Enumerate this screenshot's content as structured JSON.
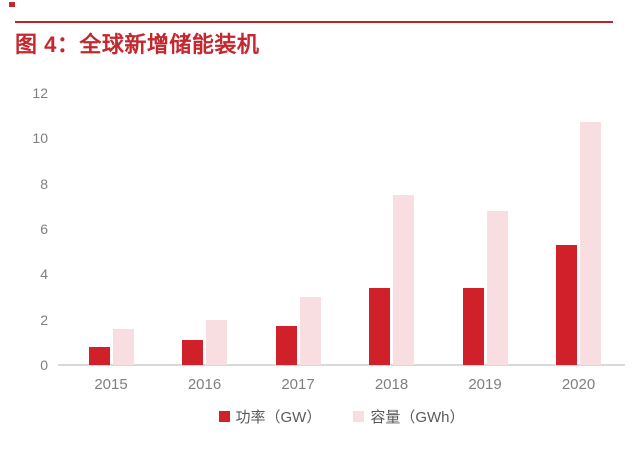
{
  "page": {
    "title": "图 4：全球新增储能装机"
  },
  "colors": {
    "accent_rule": "#bf2329",
    "title_text": "#c2282e",
    "power_bar": "#d0202a",
    "capacity_bar": "#f8dde1",
    "axis_label": "#7f7f7f",
    "legend_text": "#595959",
    "axis_line": "#d9d9d9"
  },
  "chart_data": {
    "type": "bar",
    "title": "图 4：全球新增储能装机",
    "categories": [
      "2015",
      "2016",
      "2017",
      "2018",
      "2019",
      "2020"
    ],
    "series": [
      {
        "key": "power",
        "name": "功率（GW）",
        "color": "#d0202a",
        "values": [
          0.8,
          1.1,
          1.7,
          3.4,
          3.4,
          5.3
        ]
      },
      {
        "key": "capacity",
        "name": "容量（GWh）",
        "color": "#f8dde1",
        "values": [
          1.6,
          2.0,
          3.0,
          7.5,
          6.8,
          10.7
        ]
      }
    ],
    "xlabel": "",
    "ylabel": "",
    "ylim": [
      0,
      12
    ],
    "yticks": [
      0,
      2,
      4,
      6,
      8,
      10,
      12
    ],
    "grid": false,
    "legend_position": "bottom"
  }
}
